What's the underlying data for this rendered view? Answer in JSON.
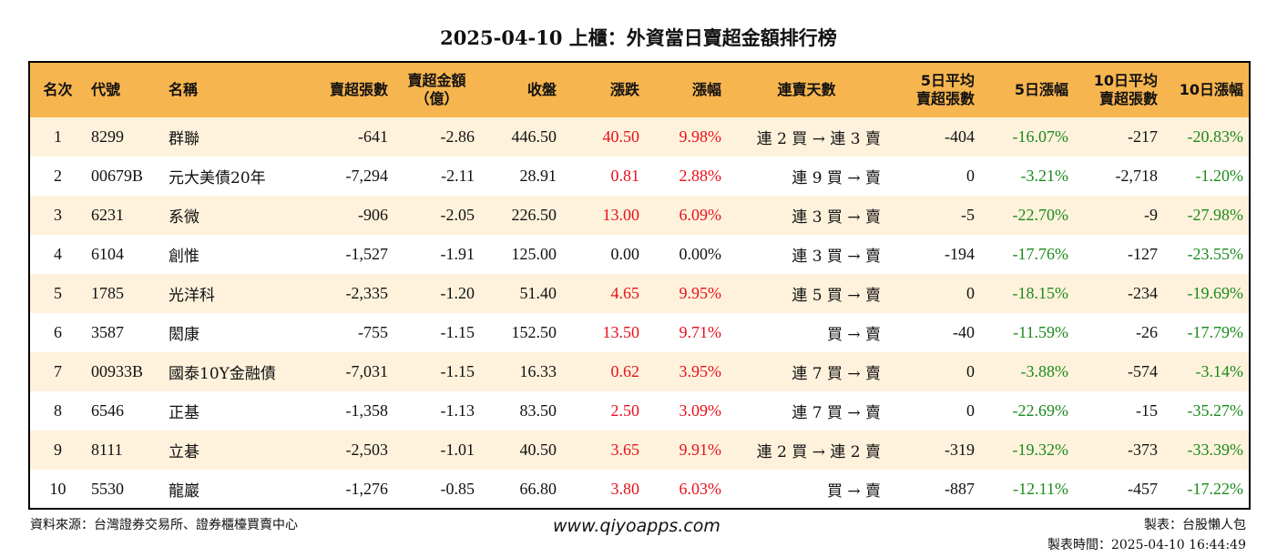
{
  "title": "2025-04-10 上櫃：外資當日賣超金額排行榜",
  "headers": [
    "名次",
    "代號",
    "名稱",
    "賣超張數",
    "賣超金額\n（億）",
    "收盤",
    "漲跌",
    "漲幅",
    "連賣天數",
    "5日平均\n賣超張數",
    "5日漲幅",
    "10日平均\n賣超張數",
    "10日漲幅"
  ],
  "rows": [
    {
      "rank": "1",
      "code": "8299",
      "name": "群聯",
      "shares": "-641",
      "amount": "-2.86",
      "close": "446.50",
      "change": "40.50",
      "pct": "9.98%",
      "days": "連 2 買 → 連 3 賣",
      "avg5": "-404",
      "pct5": "-16.07%",
      "avg10": "-217",
      "pct10": "-20.83%",
      "up": true
    },
    {
      "rank": "2",
      "code": "00679B",
      "name": "元大美債20年",
      "shares": "-7,294",
      "amount": "-2.11",
      "close": "28.91",
      "change": "0.81",
      "pct": "2.88%",
      "days": "連 9 買 → 賣",
      "avg5": "0",
      "pct5": "-3.21%",
      "avg10": "-2,718",
      "pct10": "-1.20%",
      "up": true
    },
    {
      "rank": "3",
      "code": "6231",
      "name": "系微",
      "shares": "-906",
      "amount": "-2.05",
      "close": "226.50",
      "change": "13.00",
      "pct": "6.09%",
      "days": "連 3 買 → 賣",
      "avg5": "-5",
      "pct5": "-22.70%",
      "avg10": "-9",
      "pct10": "-27.98%",
      "up": true
    },
    {
      "rank": "4",
      "code": "6104",
      "name": "創惟",
      "shares": "-1,527",
      "amount": "-1.91",
      "close": "125.00",
      "change": "0.00",
      "pct": "0.00%",
      "days": "連 3 買 → 賣",
      "avg5": "-194",
      "pct5": "-17.76%",
      "avg10": "-127",
      "pct10": "-23.55%",
      "up": false
    },
    {
      "rank": "5",
      "code": "1785",
      "name": "光洋科",
      "shares": "-2,335",
      "amount": "-1.20",
      "close": "51.40",
      "change": "4.65",
      "pct": "9.95%",
      "days": "連 5 買 → 賣",
      "avg5": "0",
      "pct5": "-18.15%",
      "avg10": "-234",
      "pct10": "-19.69%",
      "up": true
    },
    {
      "rank": "6",
      "code": "3587",
      "name": "閎康",
      "shares": "-755",
      "amount": "-1.15",
      "close": "152.50",
      "change": "13.50",
      "pct": "9.71%",
      "days": "買 → 賣",
      "avg5": "-40",
      "pct5": "-11.59%",
      "avg10": "-26",
      "pct10": "-17.79%",
      "up": true
    },
    {
      "rank": "7",
      "code": "00933B",
      "name": "國泰10Y金融債",
      "shares": "-7,031",
      "amount": "-1.15",
      "close": "16.33",
      "change": "0.62",
      "pct": "3.95%",
      "days": "連 7 買 → 賣",
      "avg5": "0",
      "pct5": "-3.88%",
      "avg10": "-574",
      "pct10": "-3.14%",
      "up": true
    },
    {
      "rank": "8",
      "code": "6546",
      "name": "正基",
      "shares": "-1,358",
      "amount": "-1.13",
      "close": "83.50",
      "change": "2.50",
      "pct": "3.09%",
      "days": "連 7 買 → 賣",
      "avg5": "0",
      "pct5": "-22.69%",
      "avg10": "-15",
      "pct10": "-35.27%",
      "up": true
    },
    {
      "rank": "9",
      "code": "8111",
      "name": "立碁",
      "shares": "-2,503",
      "amount": "-1.01",
      "close": "40.50",
      "change": "3.65",
      "pct": "9.91%",
      "days": "連 2 買 → 連 2 賣",
      "avg5": "-319",
      "pct5": "-19.32%",
      "avg10": "-373",
      "pct10": "-33.39%",
      "up": true
    },
    {
      "rank": "10",
      "code": "5530",
      "name": "龍巖",
      "shares": "-1,276",
      "amount": "-0.85",
      "close": "66.80",
      "change": "3.80",
      "pct": "6.03%",
      "days": "買 → 賣",
      "avg5": "-887",
      "pct5": "-12.11%",
      "avg10": "-457",
      "pct10": "-17.22%",
      "up": true
    }
  ],
  "footer": {
    "source": "資料來源：台灣證券交易所、證券櫃檯買賣中心",
    "website": "www.qiyoapps.com",
    "maker": "製表：台股懶人包",
    "time": "製表時間：2025-04-10 16:44:49"
  },
  "colors": {
    "header_bg": "#f7b54f",
    "row_alt_bg": "#fff2dc",
    "up": "#e8101c",
    "down": "#1a8a1a"
  }
}
